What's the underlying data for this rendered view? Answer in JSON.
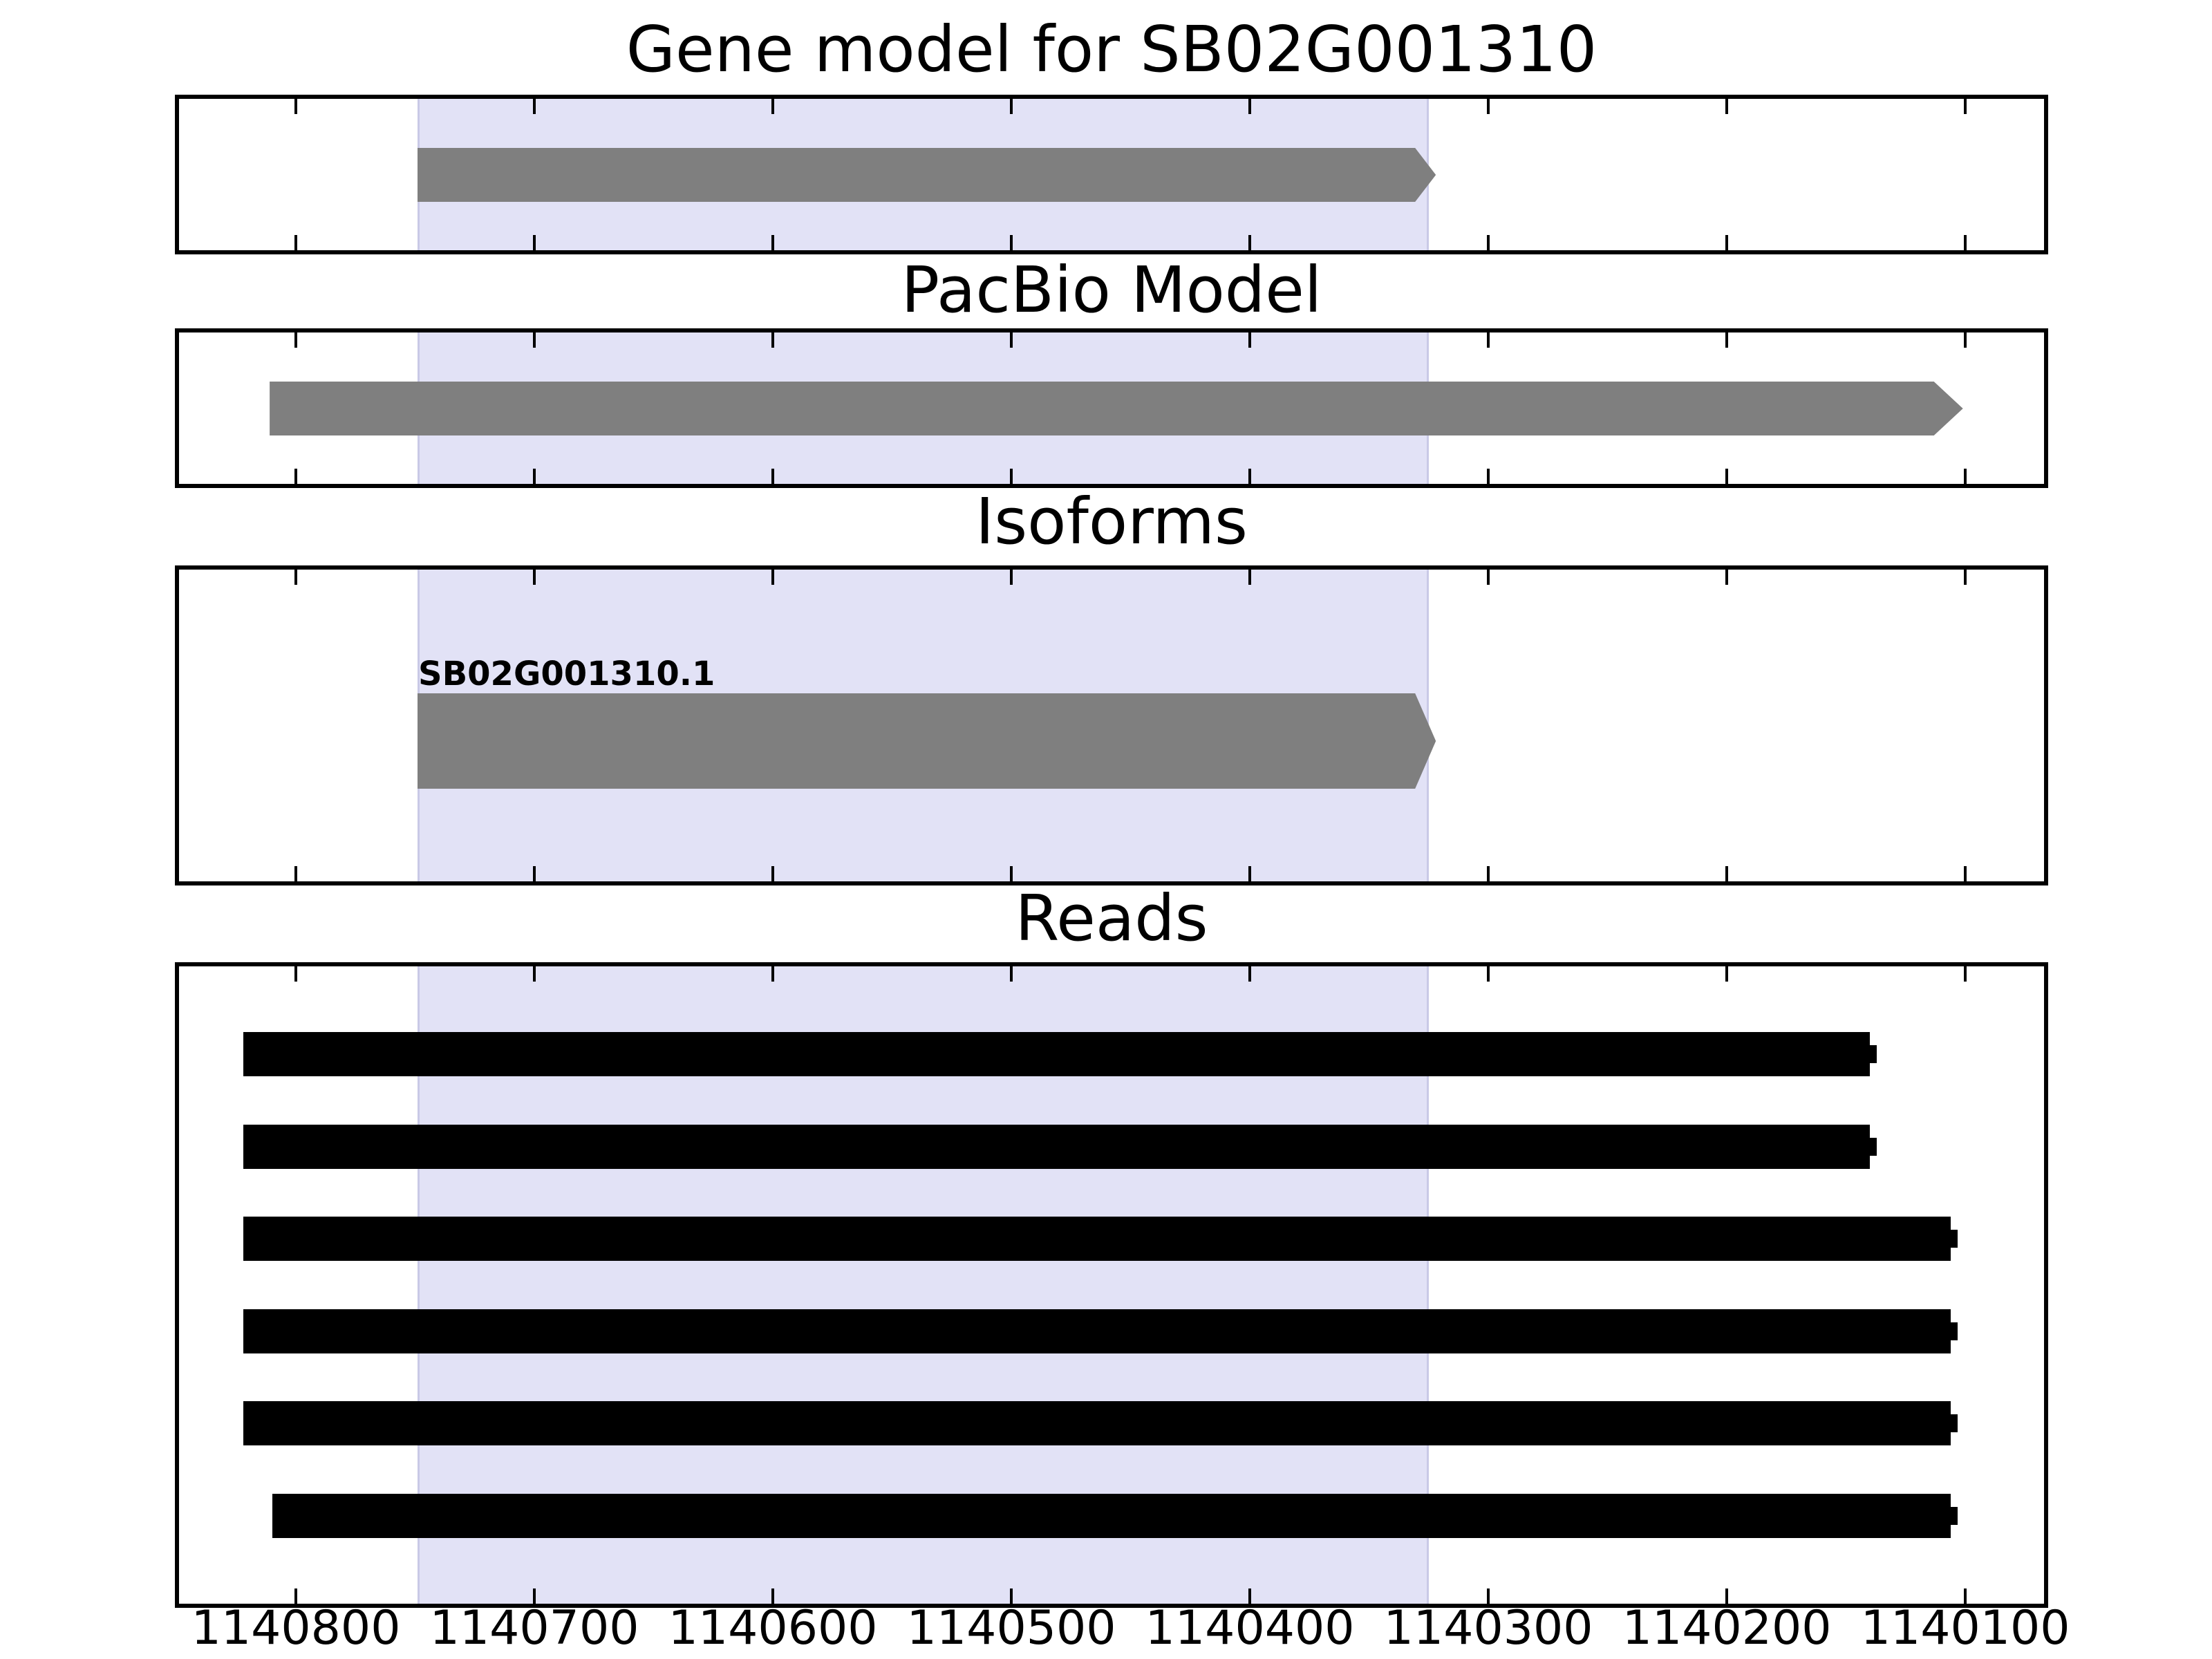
{
  "axis": {
    "x_range_left": 1140849,
    "x_range_right": 1140067,
    "x_inverted": true,
    "x_ticks": [
      1140800,
      1140700,
      1140600,
      1140500,
      1140400,
      1140300,
      1140200,
      1140100
    ],
    "x_tick_labels": [
      "1140800",
      "1140700",
      "1140600",
      "1140500",
      "1140400",
      "1140300",
      "1140200",
      "1140100"
    ]
  },
  "colors": {
    "model_fill": "#7F7F7F",
    "read_fill": "#000000",
    "frame": "#000000",
    "highlight_fill": "#E2E2F6",
    "highlight_edge": "#C9C9E6"
  },
  "chart_data": {
    "type": "genome-track-plot",
    "x_unit": "chromosome position",
    "x_inverted": true,
    "grid": false,
    "highlight_region": {
      "start": 1140749,
      "end": 1140325
    },
    "panels": [
      {
        "title": "Gene model for SB02G001310",
        "track": "gene_model",
        "features": [
          {
            "name": "SB02G001310",
            "start": 1140749,
            "end": 1140322,
            "shape": "arrow-right",
            "color": "#7F7F7F"
          }
        ]
      },
      {
        "title": "PacBio Model",
        "track": "pacbio_model",
        "features": [
          {
            "name": "pacbio-model",
            "start": 1140811,
            "end": 1140101,
            "shape": "arrow-right",
            "color": "#7F7F7F"
          }
        ]
      },
      {
        "title": "Isoforms",
        "track": "isoforms",
        "features": [
          {
            "name": "SB02G001310.1",
            "label": "SB02G001310.1",
            "start": 1140749,
            "end": 1140322,
            "shape": "arrow-right",
            "color": "#7F7F7F"
          }
        ]
      },
      {
        "title": "Reads",
        "track": "reads",
        "features": [
          {
            "name": "read-1",
            "start": 1140822,
            "end": 1140140,
            "shape": "bar-endtick",
            "color": "#000000"
          },
          {
            "name": "read-2",
            "start": 1140822,
            "end": 1140140,
            "shape": "bar-endtick",
            "color": "#000000"
          },
          {
            "name": "read-3",
            "start": 1140822,
            "end": 1140106,
            "shape": "bar-endtick",
            "color": "#000000"
          },
          {
            "name": "read-4",
            "start": 1140822,
            "end": 1140106,
            "shape": "bar-endtick",
            "color": "#000000"
          },
          {
            "name": "read-5",
            "start": 1140822,
            "end": 1140106,
            "shape": "bar-endtick",
            "color": "#000000"
          },
          {
            "name": "read-6",
            "start": 1140810,
            "end": 1140106,
            "shape": "bar-endtick",
            "color": "#000000"
          }
        ]
      }
    ]
  }
}
